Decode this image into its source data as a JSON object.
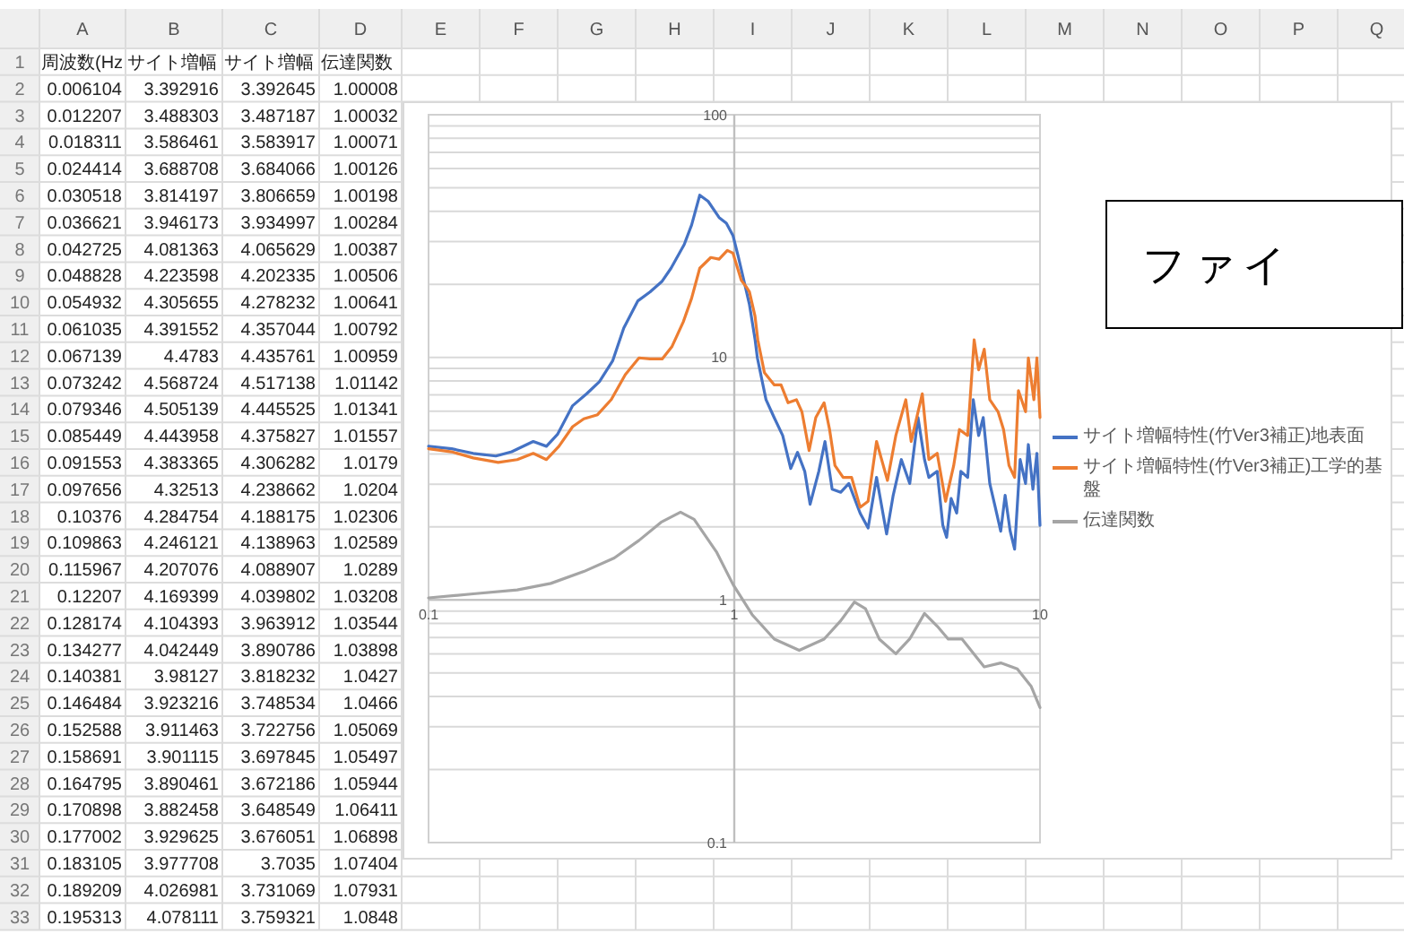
{
  "chart_data": [
    {
      "type": "heatmap",
      "categories": [
        "A",
        "B",
        "C",
        "D",
        "E",
        "F",
        "G",
        "H",
        "I",
        "J",
        "K",
        "L",
        "M",
        "N",
        "O",
        "P",
        "Q"
      ],
      "y_categories": [
        "1",
        "2",
        "3",
        "4",
        "5",
        "6",
        "7",
        "8",
        "9",
        "10",
        "11",
        "12",
        "13",
        "14",
        "15",
        "16",
        "17",
        "18",
        "19",
        "20",
        "21",
        "22",
        "23",
        "24",
        "25",
        "26",
        "27",
        "28",
        "29",
        "30",
        "31",
        "32",
        "33"
      ],
      "cells": [
        [
          null,
          null,
          null,
          null,
          null,
          null,
          null,
          null,
          null,
          null,
          null,
          null,
          null,
          null,
          null,
          null,
          null
        ],
        [
          null,
          null,
          null,
          null,
          null,
          null,
          null,
          null,
          null,
          null,
          null,
          null,
          null,
          null,
          null,
          null,
          null
        ],
        [
          null,
          null,
          null,
          null,
          null,
          null,
          null,
          null,
          null,
          null,
          null,
          null,
          null,
          null,
          null,
          null,
          null
        ],
        [
          null,
          null,
          null,
          null,
          null,
          null,
          null,
          null,
          null,
          null,
          null,
          null,
          null,
          null,
          null,
          null,
          null
        ],
        [
          null,
          null,
          null,
          null,
          null,
          null,
          null,
          null,
          null,
          null,
          null,
          null,
          null,
          null,
          null,
          null,
          null
        ],
        [
          null,
          null,
          null,
          null,
          null,
          null,
          null,
          null,
          null,
          null,
          null,
          null,
          null,
          null,
          null,
          null,
          null
        ],
        [
          null,
          null,
          null,
          null,
          null,
          null,
          null,
          null,
          null,
          null,
          null,
          null,
          null,
          null,
          null,
          null,
          null
        ],
        [
          null,
          null,
          null,
          null,
          null,
          null,
          null,
          null,
          null,
          null,
          null,
          null,
          null,
          null,
          null,
          null,
          null
        ],
        [
          null,
          null,
          null,
          null,
          null,
          null,
          null,
          null,
          null,
          null,
          null,
          null,
          null,
          null,
          null,
          null,
          null
        ],
        [
          null,
          null,
          null,
          null,
          null,
          null,
          null,
          null,
          null,
          null,
          null,
          null,
          null,
          null,
          null,
          null,
          null
        ],
        [
          null,
          null,
          null,
          null,
          null,
          null,
          null,
          null,
          null,
          null,
          null,
          null,
          null,
          null,
          null,
          null,
          null
        ],
        [
          null,
          null,
          null,
          null,
          null,
          null,
          null,
          null,
          null,
          null,
          null,
          null,
          null,
          null,
          null,
          null,
          null
        ],
        [
          null,
          null,
          null,
          null,
          null,
          null,
          null,
          null,
          null,
          null,
          null,
          null,
          null,
          null,
          null,
          null,
          null
        ],
        [
          null,
          null,
          null,
          null,
          null,
          null,
          null,
          null,
          null,
          null,
          null,
          null,
          null,
          null,
          null,
          null,
          null
        ],
        [
          null,
          null,
          null,
          null,
          null,
          null,
          null,
          null,
          null,
          null,
          null,
          null,
          null,
          null,
          null,
          null,
          null
        ],
        [
          null,
          null,
          null,
          null,
          null,
          null,
          null,
          null,
          null,
          null,
          null,
          null,
          null,
          null,
          null,
          null,
          null
        ],
        [
          null,
          null,
          null,
          null,
          null,
          null,
          null,
          null,
          null,
          null,
          null,
          null,
          null,
          null,
          null,
          null,
          null
        ],
        [
          null,
          null,
          null,
          null,
          null,
          null,
          null,
          null,
          null,
          null,
          null,
          null,
          null,
          null,
          null,
          null,
          null
        ],
        [
          null,
          null,
          null,
          null,
          null,
          null,
          null,
          null,
          null,
          null,
          null,
          null,
          null,
          null,
          null,
          null,
          null
        ],
        [
          null,
          null,
          null,
          null,
          null,
          null,
          null,
          null,
          null,
          null,
          null,
          null,
          null,
          null,
          null,
          null,
          null
        ],
        [
          null,
          null,
          null,
          null,
          null,
          null,
          null,
          null,
          null,
          null,
          null,
          null,
          null,
          null,
          null,
          null,
          null
        ],
        [
          null,
          null,
          null,
          null,
          null,
          null,
          null,
          null,
          null,
          null,
          null,
          null,
          null,
          null,
          null,
          null,
          null
        ],
        [
          null,
          null,
          null,
          null,
          null,
          null,
          null,
          null,
          null,
          null,
          null,
          null,
          null,
          null,
          null,
          null,
          null
        ],
        [
          null,
          null,
          null,
          null,
          null,
          null,
          null,
          null,
          null,
          null,
          null,
          null,
          null,
          null,
          null,
          null,
          null
        ],
        [
          null,
          null,
          null,
          null,
          null,
          null,
          null,
          null,
          null,
          null,
          null,
          null,
          null,
          null,
          null,
          null,
          null
        ],
        [
          null,
          null,
          null,
          null,
          null,
          null,
          null,
          null,
          null,
          null,
          null,
          null,
          null,
          null,
          null,
          null,
          null
        ],
        [
          null,
          null,
          null,
          null,
          null,
          null,
          null,
          null,
          null,
          null,
          null,
          null,
          null,
          null,
          null,
          null,
          null
        ],
        [
          null,
          null,
          null,
          null,
          null,
          null,
          null,
          null,
          null,
          null,
          null,
          null,
          null,
          null,
          null,
          null,
          null
        ],
        [
          null,
          null,
          null,
          null,
          null,
          null,
          null,
          null,
          null,
          null,
          null,
          null,
          null,
          null,
          null,
          null,
          null
        ],
        [
          null,
          null,
          null,
          null,
          null,
          null,
          null,
          null,
          null,
          null,
          null,
          null,
          null,
          null,
          null,
          null,
          null
        ],
        [
          null,
          null,
          null,
          null,
          null,
          null,
          null,
          null,
          null,
          null,
          null,
          null,
          null,
          null,
          null,
          null,
          null
        ],
        [
          null,
          null,
          null,
          null,
          null,
          null,
          null,
          null,
          null,
          null,
          null,
          null,
          null,
          null,
          null,
          null,
          null
        ],
        [
          null,
          null,
          null,
          null,
          null,
          null,
          null,
          null,
          null,
          null,
          null,
          null,
          null,
          null,
          null,
          null,
          null
        ]
      ],
      "cell_labels": [
        [
          "周波数(Hz",
          "サイト増幅",
          "サイト増幅",
          "伝達関数",
          null,
          null,
          null,
          null,
          null,
          null,
          null,
          null,
          null,
          null,
          null,
          null,
          null
        ],
        [
          "0.006104",
          "3.392916",
          "3.392645",
          "1.00008",
          null,
          null,
          null,
          null,
          null,
          null,
          null,
          null,
          null,
          null,
          null,
          null,
          null
        ],
        [
          "0.012207",
          "3.488303",
          "3.487187",
          "1.00032",
          null,
          null,
          null,
          null,
          null,
          null,
          null,
          null,
          null,
          null,
          null,
          null,
          null
        ],
        [
          "0.018311",
          "3.586461",
          "3.583917",
          "1.00071",
          null,
          null,
          null,
          null,
          null,
          null,
          null,
          null,
          null,
          null,
          null,
          null,
          null
        ],
        [
          "0.024414",
          "3.688708",
          "3.684066",
          "1.00126",
          null,
          null,
          null,
          null,
          null,
          null,
          null,
          null,
          null,
          null,
          null,
          null,
          null
        ],
        [
          "0.030518",
          "3.814197",
          "3.806659",
          "1.00198",
          null,
          null,
          null,
          null,
          null,
          null,
          null,
          null,
          null,
          null,
          null,
          null,
          null
        ],
        [
          "0.036621",
          "3.946173",
          "3.934997",
          "1.00284",
          null,
          null,
          null,
          null,
          null,
          null,
          null,
          null,
          null,
          null,
          null,
          null,
          null
        ],
        [
          "0.042725",
          "4.081363",
          "4.065629",
          "1.00387",
          null,
          null,
          null,
          null,
          null,
          null,
          null,
          null,
          null,
          null,
          null,
          null,
          null
        ],
        [
          "0.048828",
          "4.223598",
          "4.202335",
          "1.00506",
          null,
          null,
          null,
          null,
          null,
          null,
          null,
          null,
          null,
          null,
          null,
          null,
          null
        ],
        [
          "0.054932",
          "4.305655",
          "4.278232",
          "1.00641",
          null,
          null,
          null,
          null,
          null,
          null,
          null,
          null,
          null,
          null,
          null,
          null,
          null
        ],
        [
          "0.061035",
          "4.391552",
          "4.357044",
          "1.00792",
          null,
          null,
          null,
          null,
          null,
          null,
          null,
          null,
          null,
          null,
          null,
          null,
          null
        ],
        [
          "0.067139",
          "4.4783",
          "4.435761",
          "1.00959",
          null,
          null,
          null,
          null,
          null,
          null,
          null,
          null,
          null,
          null,
          null,
          null,
          null
        ],
        [
          "0.073242",
          "4.568724",
          "4.517138",
          "1.01142",
          null,
          null,
          null,
          null,
          null,
          null,
          null,
          null,
          null,
          null,
          null,
          null,
          null
        ],
        [
          "0.079346",
          "4.505139",
          "4.445525",
          "1.01341",
          null,
          null,
          null,
          null,
          null,
          null,
          null,
          null,
          null,
          null,
          null,
          null,
          null
        ],
        [
          "0.085449",
          "4.443958",
          "4.375827",
          "1.01557",
          null,
          null,
          null,
          null,
          null,
          null,
          null,
          null,
          null,
          null,
          null,
          null,
          null
        ],
        [
          "0.091553",
          "4.383365",
          "4.306282",
          "1.0179",
          null,
          null,
          null,
          null,
          null,
          null,
          null,
          null,
          null,
          null,
          null,
          null,
          null
        ],
        [
          "0.097656",
          "4.32513",
          "4.238662",
          "1.0204",
          null,
          null,
          null,
          null,
          null,
          null,
          null,
          null,
          null,
          null,
          null,
          null,
          null
        ],
        [
          "0.10376",
          "4.284754",
          "4.188175",
          "1.02306",
          null,
          null,
          null,
          null,
          null,
          null,
          null,
          null,
          null,
          null,
          null,
          null,
          null
        ],
        [
          "0.109863",
          "4.246121",
          "4.138963",
          "1.02589",
          null,
          null,
          null,
          null,
          null,
          null,
          null,
          null,
          null,
          null,
          null,
          null,
          null
        ],
        [
          "0.115967",
          "4.207076",
          "4.088907",
          "1.0289",
          null,
          null,
          null,
          null,
          null,
          null,
          null,
          null,
          null,
          null,
          null,
          null,
          null
        ],
        [
          "0.12207",
          "4.169399",
          "4.039802",
          "1.03208",
          null,
          null,
          null,
          null,
          null,
          null,
          null,
          null,
          null,
          null,
          null,
          null,
          null
        ],
        [
          "0.128174",
          "4.104393",
          "3.963912",
          "1.03544",
          null,
          null,
          null,
          null,
          null,
          null,
          null,
          null,
          null,
          null,
          null,
          null,
          null
        ],
        [
          "0.134277",
          "4.042449",
          "3.890786",
          "1.03898",
          null,
          null,
          null,
          null,
          null,
          null,
          null,
          null,
          null,
          null,
          null,
          null,
          null
        ],
        [
          "0.140381",
          "3.98127",
          "3.818232",
          "1.0427",
          null,
          null,
          null,
          null,
          null,
          null,
          null,
          null,
          null,
          null,
          null,
          null,
          null
        ],
        [
          "0.146484",
          "3.923216",
          "3.748534",
          "1.0466",
          null,
          null,
          null,
          null,
          null,
          null,
          null,
          null,
          null,
          null,
          null,
          null,
          null
        ],
        [
          "0.152588",
          "3.911463",
          "3.722756",
          "1.05069",
          null,
          null,
          null,
          null,
          null,
          null,
          null,
          null,
          null,
          null,
          null,
          null,
          null
        ],
        [
          "0.158691",
          "3.901115",
          "3.697845",
          "1.05497",
          null,
          null,
          null,
          null,
          null,
          null,
          null,
          null,
          null,
          null,
          null,
          null,
          null
        ],
        [
          "0.164795",
          "3.890461",
          "3.672186",
          "1.05944",
          null,
          null,
          null,
          null,
          null,
          null,
          null,
          null,
          null,
          null,
          null,
          null,
          null
        ],
        [
          "0.170898",
          "3.882458",
          "3.648549",
          "1.06411",
          null,
          null,
          null,
          null,
          null,
          null,
          null,
          null,
          null,
          null,
          null,
          null,
          null
        ],
        [
          "0.177002",
          "3.929625",
          "3.676051",
          "1.06898",
          null,
          null,
          null,
          null,
          null,
          null,
          null,
          null,
          null,
          null,
          null,
          null,
          null
        ],
        [
          "0.183105",
          "3.977708",
          "3.7035",
          "1.07404",
          null,
          null,
          null,
          null,
          null,
          null,
          null,
          null,
          null,
          null,
          null,
          null,
          null
        ],
        [
          "0.189209",
          "4.026981",
          "3.731069",
          "1.07931",
          null,
          null,
          null,
          null,
          null,
          null,
          null,
          null,
          null,
          null,
          null,
          null,
          null
        ],
        [
          "0.195313",
          "4.078111",
          "3.759321",
          "1.0848",
          null,
          null,
          null,
          null,
          null,
          null,
          null,
          null,
          null,
          null,
          null,
          null,
          null
        ]
      ]
    },
    {
      "type": "line",
      "log": "xy",
      "grid": "y",
      "legend": "right",
      "xlim": [
        0.1,
        10
      ],
      "xticks": [
        0.1,
        1,
        10
      ],
      "ylim": [
        0.1,
        100
      ],
      "yticks": [
        0.1,
        {
          "value": 0.2,
          "label": null
        },
        {
          "value": 0.3,
          "label": null
        },
        {
          "value": 0.4,
          "label": null
        },
        {
          "value": 0.5,
          "label": null
        },
        {
          "value": 0.6,
          "label": null
        },
        {
          "value": 0.7,
          "label": null
        },
        {
          "value": 0.8,
          "label": null
        },
        {
          "value": 0.9,
          "label": null
        },
        1,
        {
          "value": 2,
          "label": null
        },
        {
          "value": 3,
          "label": null
        },
        {
          "value": 4,
          "label": null
        },
        {
          "value": 5,
          "label": null
        },
        {
          "value": 6,
          "label": null
        },
        {
          "value": 7,
          "label": null
        },
        {
          "value": 8,
          "label": null
        },
        {
          "value": 9,
          "label": null
        },
        10,
        {
          "value": 20,
          "label": null
        },
        {
          "value": 30,
          "label": null
        },
        {
          "value": 40,
          "label": null
        },
        {
          "value": 50,
          "label": null
        },
        {
          "value": 60,
          "label": null
        },
        {
          "value": 70,
          "label": null
        },
        {
          "value": 80,
          "label": null
        },
        {
          "value": 90,
          "label": null
        },
        100
      ],
      "annotations": [
        "ファイ"
      ],
      "series": [
        {
          "name": "サイト増幅特性(竹Ver3補正)地表面",
          "color": "#4472c4",
          "x": [
            0.1,
            0.119,
            0.14,
            0.166,
            0.187,
            0.22,
            0.243,
            0.264,
            0.296,
            0.329,
            0.362,
            0.4,
            0.435,
            0.484,
            0.53,
            0.581,
            0.621,
            0.686,
            0.725,
            0.771,
            0.821,
            0.892,
            0.942,
            0.99,
            1.03,
            1.085,
            1.12,
            1.17,
            1.19,
            1.27,
            1.35,
            1.44,
            1.53,
            1.61,
            1.7,
            1.77,
            1.89,
            1.98,
            2.09,
            2.23,
            2.37,
            2.58,
            2.74,
            2.92,
            3.15,
            3.31,
            3.52,
            3.75,
            3.99,
            4.19,
            4.33,
            4.61,
            4.81,
            4.95,
            5.12,
            5.34,
            5.51,
            5.8,
            6.05,
            6.3,
            6.52,
            6.85,
            7.14,
            7.44,
            7.69,
            7.99,
            8.26,
            8.61,
            8.97,
            9.16,
            9.48,
            9.77,
            10
          ],
          "values": [
            4.3,
            4.2,
            4.02,
            3.92,
            4.08,
            4.5,
            4.3,
            4.81,
            6.32,
            7.08,
            7.93,
            9.66,
            13.2,
            17.1,
            18.6,
            20.6,
            23.3,
            29.2,
            35.1,
            46.6,
            44,
            37.7,
            35.7,
            31.8,
            26.1,
            19.7,
            16.6,
            11.8,
            9.95,
            6.69,
            5.65,
            4.76,
            3.48,
            4.06,
            3.39,
            2.48,
            3.39,
            4.5,
            2.86,
            2.78,
            3.02,
            2.28,
            1.98,
            3.2,
            1.87,
            2.7,
            3.79,
            3.02,
            5.65,
            3.79,
            3.2,
            3.39,
            2.03,
            1.81,
            2.62,
            2.28,
            3.39,
            3.2,
            6.69,
            4.76,
            5.65,
            3.02,
            2.41,
            1.92,
            2.7,
            1.92,
            1.62,
            3.79,
            3.02,
            4.37,
            2.86,
            4.02,
            2.03
          ]
        },
        {
          "name": "サイト増幅特性(竹Ver3補正)工学的基盤",
          "color": "#ed7d31",
          "x": [
            0.1,
            0.119,
            0.14,
            0.169,
            0.195,
            0.22,
            0.243,
            0.267,
            0.296,
            0.322,
            0.357,
            0.396,
            0.44,
            0.488,
            0.53,
            0.581,
            0.626,
            0.681,
            0.725,
            0.771,
            0.838,
            0.892,
            0.949,
            0.99,
            1.054,
            1.098,
            1.121,
            1.169,
            1.194,
            1.255,
            1.352,
            1.422,
            1.5,
            1.597,
            1.664,
            1.757,
            1.848,
            1.967,
            2.05,
            2.135,
            2.27,
            2.42,
            2.58,
            2.74,
            2.92,
            3.17,
            3.376,
            3.64,
            3.79,
            4.12,
            4.33,
            4.61,
            4.91,
            5.22,
            5.45,
            5.8,
            6.09,
            6.3,
            6.57,
            6.85,
            7.29,
            7.6,
            7.92,
            8.26,
            8.5,
            8.97,
            9.16,
            9.55,
            9.77,
            10
          ],
          "values": [
            4.2,
            4.08,
            3.85,
            3.69,
            3.79,
            4.02,
            3.79,
            4.3,
            5.18,
            5.58,
            5.8,
            6.7,
            8.49,
            9.95,
            9.85,
            9.85,
            11.1,
            14,
            17.5,
            23.3,
            25.8,
            25.4,
            27.6,
            26.9,
            20.8,
            19.4,
            18.6,
            14.8,
            11.8,
            8.64,
            7.7,
            7.7,
            6.5,
            6.69,
            5.97,
            4.13,
            5.65,
            6.5,
            5.04,
            3.58,
            3.2,
            3.2,
            2.41,
            2.55,
            4.5,
            3.11,
            4.76,
            6.69,
            4.5,
            7.08,
            3.79,
            4.02,
            2.55,
            3.58,
            5.04,
            4.76,
            11.8,
            8.88,
            10.8,
            6.69,
            5.97,
            5.04,
            3.58,
            3.2,
            7.29,
            5.97,
            9.95,
            6.69,
            9.95,
            5.65
          ]
        },
        {
          "name": "伝達関数",
          "color": "#a5a5a5",
          "x": [
            0.1,
            0.14,
            0.195,
            0.251,
            0.322,
            0.405,
            0.488,
            0.576,
            0.667,
            0.739,
            0.874,
            0.99,
            1.144,
            1.352,
            1.631,
            1.967,
            2.228,
            2.471,
            2.687,
            2.98,
            3.376,
            3.745,
            4.19,
            4.61,
            5.01,
            5.56,
            6.57,
            7.44,
            8.43,
            9.36,
            10
          ],
          "values": [
            1.02,
            1.06,
            1.1,
            1.17,
            1.31,
            1.49,
            1.76,
            2.09,
            2.3,
            2.15,
            1.58,
            1.16,
            0.87,
            0.69,
            0.62,
            0.69,
            0.82,
            0.98,
            0.92,
            0.69,
            0.6,
            0.69,
            0.88,
            0.78,
            0.69,
            0.69,
            0.53,
            0.55,
            0.52,
            0.44,
            0.36
          ]
        }
      ]
    }
  ]
}
